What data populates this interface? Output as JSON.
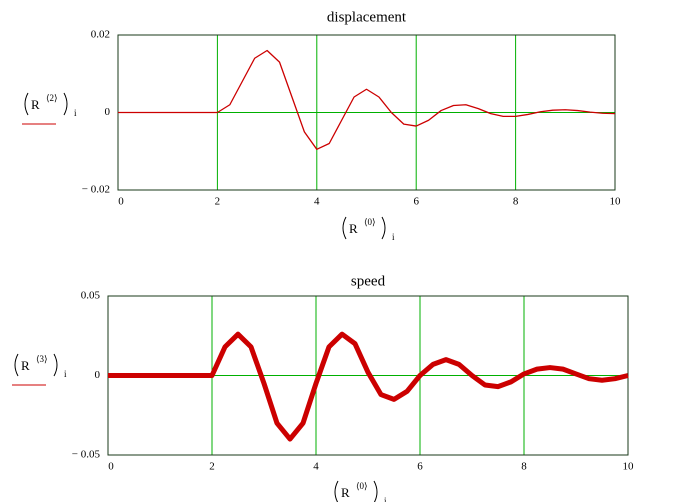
{
  "chart_data": [
    {
      "type": "line",
      "title": "displacement",
      "x_label": {
        "base": "R",
        "superscript": "⟨0⟩",
        "subscript": "i"
      },
      "y_label": {
        "base": "R",
        "superscript": "⟨2⟩",
        "subscript": "i"
      },
      "x": [
        0,
        0.25,
        0.5,
        0.75,
        1,
        1.25,
        1.5,
        1.75,
        2,
        2.25,
        2.5,
        2.75,
        3,
        3.25,
        3.5,
        3.75,
        4,
        4.25,
        4.5,
        4.75,
        5,
        5.25,
        5.5,
        5.75,
        6,
        6.25,
        6.5,
        6.75,
        7,
        7.25,
        7.5,
        7.75,
        8,
        8.25,
        8.5,
        8.75,
        9,
        9.25,
        9.5,
        9.75,
        10
      ],
      "series": [
        {
          "color": "#cc0000",
          "values": [
            0,
            0,
            0,
            0,
            0,
            0,
            0,
            0,
            0,
            0.002,
            0.008,
            0.014,
            0.016,
            0.013,
            0.004,
            -0.005,
            -0.0095,
            -0.008,
            -0.002,
            0.004,
            0.006,
            0.004,
            0,
            -0.003,
            -0.0035,
            -0.002,
            0.0005,
            0.0018,
            0.002,
            0.001,
            -0.0003,
            -0.001,
            -0.001,
            -0.0005,
            0.0002,
            0.0006,
            0.0007,
            0.0005,
            0.0001,
            -0.0002,
            -0.0003
          ]
        }
      ],
      "xlim": [
        0,
        10
      ],
      "xticks": [
        0,
        2,
        4,
        6,
        8,
        10
      ],
      "ylim": [
        -0.02,
        0.02
      ],
      "yticks": [
        {
          "value": -0.02,
          "label": "− 0.02"
        },
        0,
        0.02
      ],
      "grid": true,
      "grid_color": "#00b000"
    },
    {
      "type": "line",
      "title": "speed",
      "x_label": {
        "base": "R",
        "superscript": "⟨0⟩",
        "subscript": "i"
      },
      "y_label": {
        "base": "R",
        "superscript": "⟨3⟩",
        "subscript": "i"
      },
      "x": [
        0,
        0.25,
        0.5,
        0.75,
        1,
        1.25,
        1.5,
        1.75,
        2,
        2.25,
        2.5,
        2.75,
        3,
        3.25,
        3.5,
        3.75,
        4,
        4.25,
        4.5,
        4.75,
        5,
        5.25,
        5.5,
        5.75,
        6,
        6.25,
        6.5,
        6.75,
        7,
        7.25,
        7.5,
        7.75,
        8,
        8.25,
        8.5,
        8.75,
        9,
        9.25,
        9.5,
        9.75,
        10
      ],
      "series": [
        {
          "color": "#cc0000",
          "values": [
            0,
            0,
            0,
            0,
            0,
            0,
            0,
            0,
            0,
            0.018,
            0.026,
            0.018,
            -0.005,
            -0.03,
            -0.04,
            -0.03,
            -0.005,
            0.018,
            0.026,
            0.02,
            0.002,
            -0.012,
            -0.015,
            -0.01,
            0,
            0.007,
            0.01,
            0.007,
            0,
            -0.006,
            -0.007,
            -0.004,
            0.001,
            0.004,
            0.005,
            0.004,
            0.001,
            -0.002,
            -0.003,
            -0.002,
            0
          ]
        }
      ],
      "xlim": [
        0,
        10
      ],
      "xticks": [
        0,
        2,
        4,
        6,
        8,
        10
      ],
      "ylim": [
        -0.05,
        0.05
      ],
      "yticks": [
        {
          "value": -0.05,
          "label": "− 0.05"
        },
        0,
        0.05
      ],
      "grid": true,
      "grid_color": "#00b000"
    }
  ]
}
